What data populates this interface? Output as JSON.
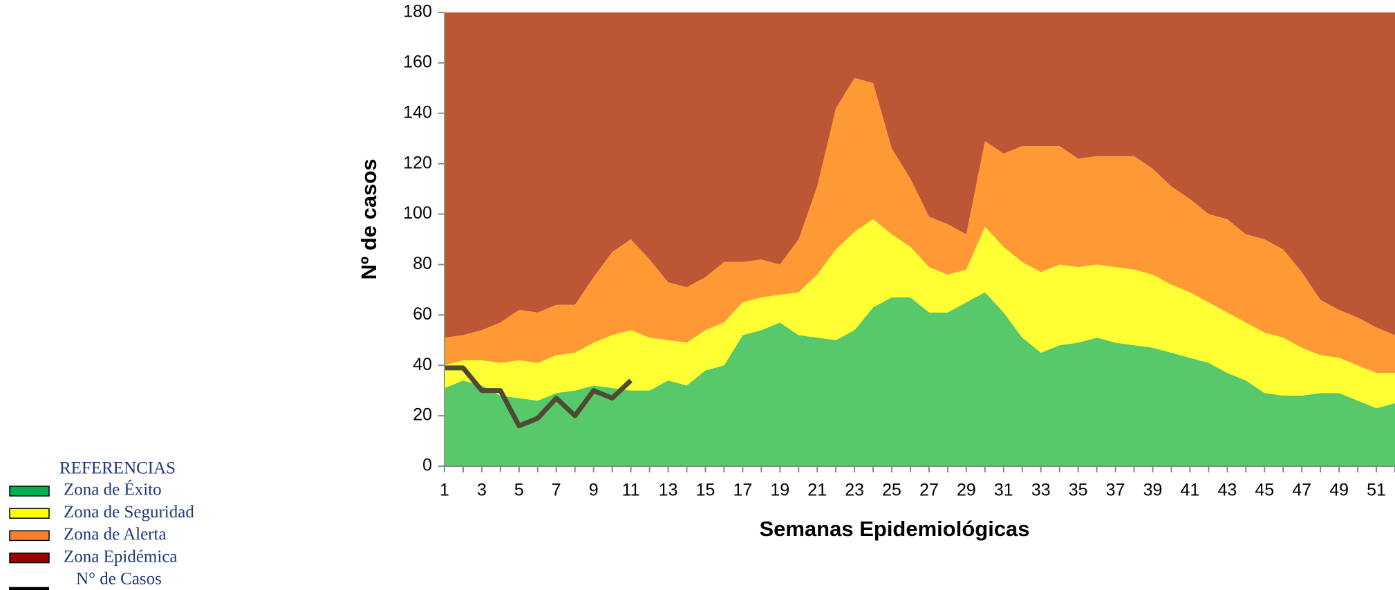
{
  "chart_data": {
    "type": "stacked_area",
    "x_label": "Semanas Epidemiológicas",
    "y_label": "Nº de casos",
    "legend_title": "REFERENCIAS",
    "x": [
      1,
      2,
      3,
      4,
      5,
      6,
      7,
      8,
      9,
      10,
      11,
      12,
      13,
      14,
      15,
      16,
      17,
      18,
      19,
      20,
      21,
      22,
      23,
      24,
      25,
      26,
      27,
      28,
      29,
      30,
      31,
      32,
      33,
      34,
      35,
      36,
      37,
      38,
      39,
      40,
      41,
      42,
      43,
      44,
      45,
      46,
      47,
      48,
      49,
      50,
      51,
      52
    ],
    "xlim": [
      1,
      52
    ],
    "xticks": [
      1,
      3,
      5,
      7,
      9,
      11,
      13,
      15,
      17,
      19,
      21,
      23,
      25,
      27,
      29,
      31,
      33,
      35,
      37,
      39,
      41,
      43,
      45,
      47,
      49,
      51
    ],
    "ylim": [
      0,
      180
    ],
    "yticks": [
      0,
      20,
      40,
      60,
      80,
      100,
      120,
      140,
      160,
      180
    ],
    "series": [
      {
        "name": "Zona de Éxito",
        "color": "#57c96a",
        "legend_color": "#00b050",
        "values": [
          31,
          34,
          32,
          28,
          27,
          26,
          29,
          30,
          32,
          31,
          30,
          30,
          34,
          32,
          38,
          40,
          52,
          54,
          57,
          52,
          51,
          50,
          54,
          63,
          67,
          67,
          61,
          61,
          65,
          69,
          61,
          51,
          45,
          48,
          49,
          51,
          49,
          48,
          47,
          45,
          43,
          41,
          37,
          34,
          29,
          28,
          28,
          29,
          29,
          26,
          23,
          25
        ]
      },
      {
        "name": "Zona de Seguridad",
        "color": "#ffff33",
        "legend_color": "#ffff00",
        "values": [
          9,
          8,
          10,
          13,
          15,
          15,
          15,
          15,
          17,
          21,
          24,
          21,
          16,
          17,
          16,
          17,
          13,
          13,
          11,
          17,
          25,
          36,
          39,
          35,
          25,
          20,
          18,
          15,
          13,
          26,
          26,
          30,
          32,
          32,
          30,
          29,
          30,
          30,
          29,
          27,
          26,
          24,
          24,
          23,
          24,
          23,
          19,
          15,
          14,
          14,
          14,
          12
        ]
      },
      {
        "name": "Zona de Alerta",
        "color": "#ff9933",
        "legend_color": "#f7802f",
        "values": [
          11,
          10,
          12,
          16,
          20,
          20,
          20,
          19,
          26,
          33,
          36,
          31,
          23,
          22,
          21,
          24,
          16,
          15,
          12,
          21,
          35,
          56,
          61,
          54,
          34,
          27,
          20,
          20,
          14,
          34,
          37,
          46,
          50,
          47,
          43,
          43,
          44,
          45,
          42,
          39,
          37,
          35,
          37,
          35,
          37,
          35,
          30,
          22,
          19,
          19,
          18,
          15
        ]
      },
      {
        "name": "Zona Epidémica",
        "color": "#bc5634",
        "legend_color": "#990000",
        "values": [
          129,
          128,
          126,
          123,
          118,
          119,
          116,
          116,
          105,
          95,
          90,
          98,
          107,
          109,
          105,
          99,
          99,
          98,
          100,
          90,
          69,
          38,
          26,
          28,
          54,
          66,
          81,
          84,
          88,
          51,
          56,
          53,
          53,
          53,
          58,
          57,
          57,
          57,
          62,
          69,
          74,
          80,
          82,
          88,
          90,
          94,
          103,
          114,
          118,
          121,
          125,
          128
        ]
      },
      {
        "name": "N° de Casos",
        "color": "#4f4a32",
        "legend_color": "#000000",
        "kind": "line",
        "values": [
          39,
          39,
          30,
          30,
          16,
          19,
          27,
          20,
          30,
          27,
          34,
          null,
          null,
          null,
          null,
          null,
          null,
          null,
          null,
          null,
          null,
          null,
          null,
          null,
          null,
          null,
          null,
          null,
          null,
          null,
          null,
          null,
          null,
          null,
          null,
          null,
          null,
          null,
          null,
          null,
          null,
          null,
          null,
          null,
          null,
          null,
          null,
          null,
          null,
          null,
          null,
          null
        ]
      }
    ]
  }
}
